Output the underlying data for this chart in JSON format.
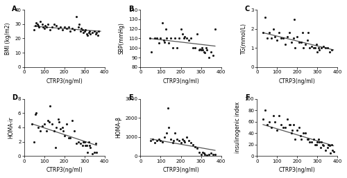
{
  "panels": [
    {
      "label": "A",
      "xlabel": "CTRP3(ng/ml)",
      "ylabel": "BMI (kg/m2)",
      "xlim": [
        0,
        400
      ],
      "ylim": [
        0,
        40
      ],
      "xticks": [
        0,
        100,
        200,
        300,
        400
      ],
      "yticks": [
        0,
        10,
        20,
        30,
        40
      ],
      "x": [
        50,
        55,
        60,
        65,
        70,
        75,
        80,
        90,
        95,
        100,
        105,
        110,
        120,
        130,
        140,
        150,
        160,
        170,
        180,
        190,
        200,
        210,
        220,
        230,
        240,
        250,
        260,
        270,
        275,
        280,
        285,
        290,
        295,
        300,
        305,
        310,
        315,
        320,
        325,
        330,
        340,
        350,
        355,
        360,
        365,
        370
      ],
      "y": [
        26,
        29,
        31,
        30,
        29,
        28,
        32,
        30,
        28,
        27,
        29,
        28,
        30,
        26,
        28,
        30,
        29,
        27,
        28,
        26,
        28,
        27,
        28,
        25,
        27,
        26,
        35,
        28,
        30,
        25,
        27,
        26,
        24,
        25,
        26,
        23,
        22,
        24,
        25,
        23,
        24,
        25,
        23,
        24,
        22,
        25
      ],
      "trend_x": [
        50,
        380
      ],
      "trend_y": [
        28.5,
        25.0
      ]
    },
    {
      "label": "B",
      "xlabel": "CTRP3(ng/ml)",
      "ylabel": "SBP(mmHg)",
      "xlim": [
        0,
        400
      ],
      "ylim": [
        80,
        140
      ],
      "xticks": [
        0,
        100,
        200,
        300,
        400
      ],
      "yticks": [
        80,
        90,
        100,
        110,
        120,
        130,
        140
      ],
      "x": [
        45,
        55,
        70,
        80,
        90,
        100,
        110,
        115,
        120,
        125,
        130,
        140,
        150,
        160,
        170,
        180,
        190,
        200,
        210,
        215,
        220,
        230,
        240,
        250,
        260,
        270,
        280,
        290,
        295,
        300,
        305,
        310,
        315,
        320,
        325,
        330,
        340,
        350,
        360,
        370
      ],
      "y": [
        110,
        96,
        110,
        110,
        105,
        110,
        126,
        108,
        106,
        120,
        110,
        105,
        110,
        100,
        110,
        100,
        110,
        120,
        115,
        110,
        112,
        110,
        108,
        110,
        100,
        100,
        115,
        98,
        99,
        98,
        100,
        98,
        96,
        95,
        100,
        98,
        90,
        96,
        92,
        120
      ],
      "trend_x": [
        45,
        370
      ],
      "trend_y": [
        110,
        102
      ]
    },
    {
      "label": "C",
      "xlabel": "CTRP3(ng/ml)",
      "ylabel": "TG(mmol/L)",
      "xlim": [
        0,
        400
      ],
      "ylim": [
        0,
        3
      ],
      "xticks": [
        0,
        100,
        200,
        300,
        400
      ],
      "yticks": [
        0,
        1,
        2,
        3
      ],
      "x": [
        30,
        40,
        50,
        60,
        70,
        80,
        90,
        100,
        110,
        120,
        130,
        140,
        150,
        160,
        170,
        180,
        185,
        190,
        200,
        210,
        220,
        225,
        230,
        240,
        250,
        255,
        260,
        270,
        280,
        290,
        295,
        300,
        305,
        310,
        320,
        330,
        340,
        350,
        360,
        370
      ],
      "y": [
        1.8,
        2.6,
        1.5,
        1.8,
        1.5,
        2.0,
        1.6,
        1.4,
        1.8,
        1.5,
        1.5,
        1.2,
        1.6,
        1.8,
        1.3,
        1.5,
        2.5,
        1.0,
        1.6,
        1.3,
        1.3,
        1.8,
        1.0,
        1.2,
        1.4,
        1.8,
        1.0,
        1.1,
        1.0,
        1.0,
        1.2,
        0.8,
        1.0,
        0.9,
        1.0,
        1.1,
        1.0,
        1.0,
        0.8,
        0.9
      ],
      "trend_x": [
        30,
        380
      ],
      "trend_y": [
        1.8,
        0.9
      ]
    },
    {
      "label": "D",
      "xlabel": "CTRP3(ng/ml)",
      "ylabel": "HOMA-ir",
      "xlim": [
        0,
        400
      ],
      "ylim": [
        0,
        8
      ],
      "xticks": [
        0,
        100,
        200,
        300,
        400
      ],
      "yticks": [
        0,
        2,
        4,
        6,
        8
      ],
      "x": [
        40,
        50,
        55,
        60,
        70,
        80,
        90,
        100,
        110,
        120,
        125,
        130,
        140,
        150,
        155,
        160,
        170,
        175,
        180,
        190,
        195,
        200,
        210,
        220,
        230,
        240,
        250,
        260,
        270,
        280,
        290,
        295,
        300,
        305,
        310,
        315,
        320,
        325,
        330,
        340,
        350,
        355,
        360
      ],
      "y": [
        4.5,
        2.0,
        5.8,
        6.0,
        4.0,
        3.5,
        4.2,
        4.5,
        3.5,
        5.0,
        4.8,
        7.0,
        4.5,
        3.5,
        1.2,
        4.0,
        5.2,
        4.8,
        3.8,
        4.0,
        3.5,
        2.8,
        4.5,
        2.5,
        2.5,
        5.0,
        3.5,
        1.8,
        2.0,
        1.8,
        1.5,
        2.0,
        2.0,
        1.5,
        1.5,
        0.5,
        2.0,
        1.5,
        1.2,
        0.3,
        0.5,
        1.8,
        0.5
      ],
      "trend_x": [
        40,
        360
      ],
      "trend_y": [
        4.5,
        1.5
      ]
    },
    {
      "label": "E",
      "xlabel": "CTRP3(ng/ml)",
      "ylabel": "HOMA-β",
      "xlim": [
        0,
        400
      ],
      "ylim": [
        0,
        3000
      ],
      "xticks": [
        0,
        100,
        200,
        300,
        400
      ],
      "yticks": [
        0,
        1000,
        2000,
        3000
      ],
      "x": [
        50,
        60,
        70,
        80,
        90,
        100,
        110,
        120,
        130,
        135,
        140,
        150,
        160,
        165,
        170,
        180,
        190,
        200,
        210,
        215,
        220,
        230,
        240,
        250,
        260,
        270,
        280,
        290,
        300,
        310,
        315,
        320,
        330,
        340,
        350,
        360,
        370
      ],
      "y": [
        800,
        900,
        700,
        800,
        900,
        800,
        750,
        1000,
        1200,
        2500,
        1500,
        900,
        700,
        800,
        1200,
        900,
        800,
        700,
        900,
        800,
        750,
        1000,
        800,
        700,
        600,
        500,
        400,
        200,
        100,
        200,
        150,
        100,
        50,
        100,
        150,
        80,
        100
      ],
      "trend_x": [
        50,
        370
      ],
      "trend_y": [
        900,
        300
      ]
    },
    {
      "label": "F",
      "xlabel": "CTRP3(ng/ml)",
      "ylabel": "insulinogenic index",
      "xlim": [
        0,
        400
      ],
      "ylim": [
        0,
        100
      ],
      "xticks": [
        0,
        100,
        200,
        300,
        400
      ],
      "yticks": [
        0,
        20,
        40,
        60,
        80,
        100
      ],
      "x": [
        30,
        40,
        50,
        60,
        70,
        80,
        90,
        100,
        110,
        120,
        130,
        140,
        150,
        160,
        165,
        170,
        175,
        180,
        190,
        200,
        210,
        215,
        220,
        230,
        240,
        250,
        255,
        260,
        270,
        280,
        290,
        295,
        300,
        305,
        310,
        315,
        320,
        325,
        330,
        340,
        350,
        355,
        360,
        365,
        370,
        375,
        380
      ],
      "y": [
        65,
        80,
        55,
        60,
        50,
        70,
        60,
        45,
        70,
        55,
        50,
        50,
        65,
        55,
        55,
        40,
        45,
        55,
        30,
        45,
        50,
        35,
        30,
        40,
        40,
        30,
        30,
        25,
        25,
        30,
        20,
        20,
        25,
        30,
        25,
        15,
        25,
        20,
        18,
        10,
        15,
        20,
        18,
        5,
        20,
        10,
        8
      ],
      "trend_x": [
        30,
        380
      ],
      "trend_y": [
        55,
        18
      ]
    }
  ],
  "dot_color": "#1a1a1a",
  "dot_size": 5,
  "line_color": "#555555",
  "line_width": 0.9,
  "bg_color": "white",
  "tick_fontsize": 5,
  "label_fontsize": 5.5,
  "panel_label_fontsize": 7
}
